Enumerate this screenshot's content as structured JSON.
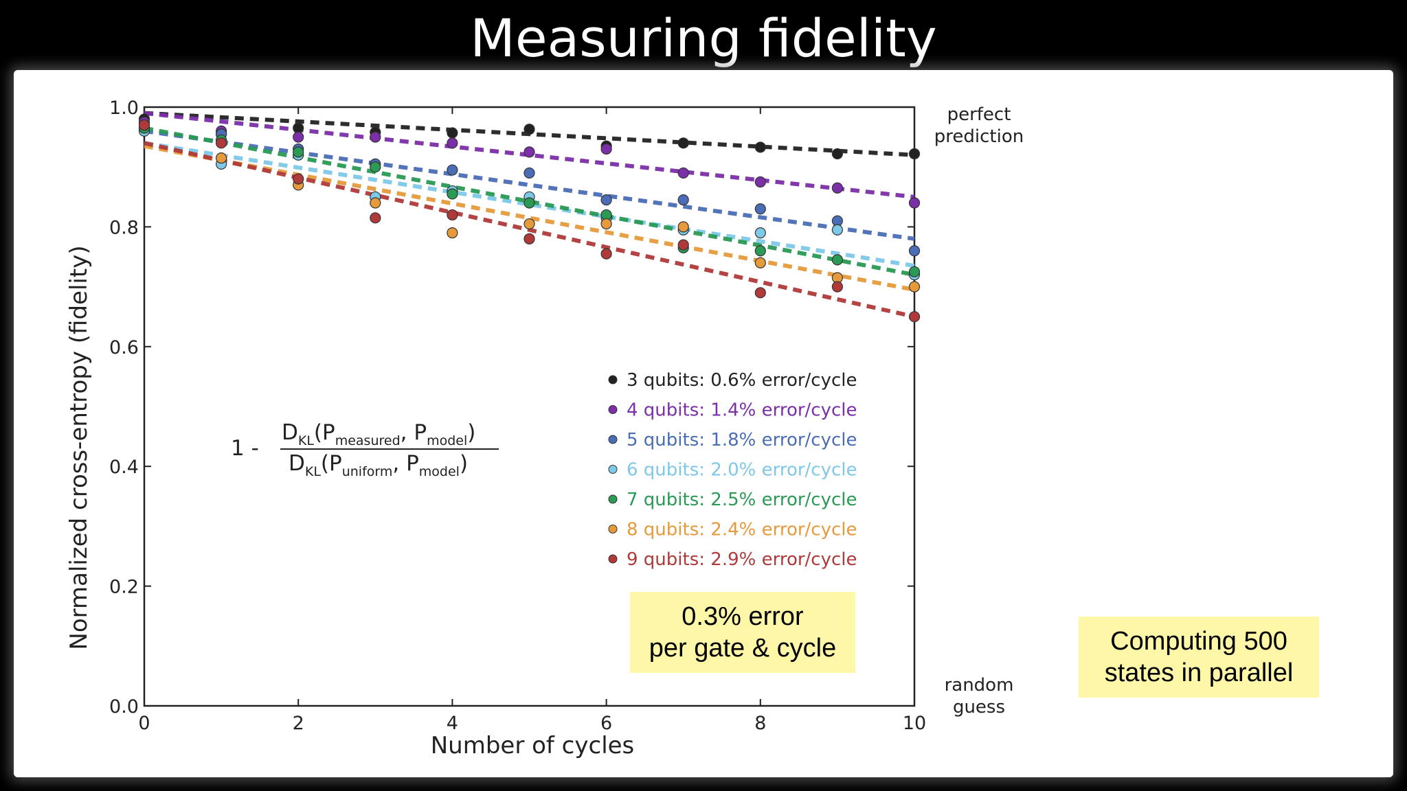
{
  "slide": {
    "title": "Measuring fidelity"
  },
  "chart_data": {
    "type": "scatter",
    "xlabel": "Number of cycles",
    "ylabel": "Normalized cross-entropy (fidelity)",
    "xlim": [
      0,
      10
    ],
    "ylim": [
      0,
      1.0
    ],
    "x_ticks": [
      "0",
      "2",
      "4",
      "6",
      "8",
      "10"
    ],
    "y_ticks": [
      "0.0",
      "0.2",
      "0.4",
      "0.6",
      "0.8",
      "1.0"
    ],
    "grid": false,
    "legend_position": "lower-right",
    "annotations": {
      "top_right": [
        "perfect",
        "prediction"
      ],
      "bottom_right": [
        "random",
        "guess"
      ]
    },
    "formula": {
      "prefix": "1  -",
      "num_d": "D",
      "num_sub": "KL",
      "num_open": "(P",
      "num_s1": "measured",
      "num_mid": ", P",
      "num_s2": "model",
      "num_close": ")",
      "den_d": "D",
      "den_sub": "KL",
      "den_open": "(P",
      "den_s1": "uniform",
      "den_mid": ", P",
      "den_s2": "model",
      "den_close": ")"
    },
    "series": [
      {
        "name": "3 qubits: 0.6% error/cycle",
        "color": "#222222",
        "fit": [
          0.99,
          0.92
        ],
        "x": [
          0,
          1,
          2,
          3,
          4,
          5,
          6,
          7,
          8,
          9,
          10
        ],
        "y": [
          0.98,
          0.955,
          0.965,
          0.958,
          0.957,
          0.963,
          0.935,
          0.94,
          0.933,
          0.922,
          0.922
        ]
      },
      {
        "name": "4 qubits: 1.4% error/cycle",
        "color": "#7b2fa8",
        "fit": [
          0.99,
          0.85
        ],
        "x": [
          0,
          1,
          2,
          3,
          4,
          5,
          6,
          7,
          8,
          9,
          10
        ],
        "y": [
          0.975,
          0.96,
          0.95,
          0.95,
          0.94,
          0.925,
          0.93,
          0.89,
          0.875,
          0.865,
          0.84
        ]
      },
      {
        "name": "5 qubits: 1.8% error/cycle",
        "color": "#4a6db5",
        "fit": [
          0.96,
          0.78
        ],
        "x": [
          0,
          1,
          2,
          3,
          4,
          5,
          6,
          7,
          8,
          9,
          10
        ],
        "y": [
          0.965,
          0.955,
          0.93,
          0.905,
          0.895,
          0.89,
          0.845,
          0.845,
          0.83,
          0.81,
          0.76
        ]
      },
      {
        "name": "6 qubits: 2.0% error/cycle",
        "color": "#7ec8e8",
        "fit": [
          0.94,
          0.735
        ],
        "x": [
          0,
          1,
          2,
          3,
          4,
          5,
          6,
          7,
          8,
          9,
          10
        ],
        "y": [
          0.96,
          0.905,
          0.92,
          0.85,
          0.86,
          0.85,
          0.815,
          0.795,
          0.79,
          0.795,
          0.72
        ]
      },
      {
        "name": "7 qubits: 2.5% error/cycle",
        "color": "#2a9a55",
        "fit": [
          0.965,
          0.72
        ],
        "x": [
          0,
          1,
          2,
          3,
          4,
          5,
          6,
          7,
          8,
          9,
          10
        ],
        "y": [
          0.965,
          0.945,
          0.925,
          0.9,
          0.855,
          0.84,
          0.82,
          0.765,
          0.76,
          0.745,
          0.725
        ]
      },
      {
        "name": "8 qubits: 2.4% error/cycle",
        "color": "#e69a3c",
        "fit": [
          0.935,
          0.695
        ],
        "x": [
          0,
          1,
          2,
          3,
          4,
          5,
          6,
          7,
          8,
          9,
          10
        ],
        "y": [
          0.97,
          0.915,
          0.87,
          0.84,
          0.79,
          0.805,
          0.805,
          0.8,
          0.74,
          0.715,
          0.7
        ]
      },
      {
        "name": "9 qubits: 2.9% error/cycle",
        "color": "#b03a3a",
        "fit": [
          0.94,
          0.65
        ],
        "x": [
          0,
          1,
          2,
          3,
          4,
          5,
          6,
          7,
          8,
          9,
          10
        ],
        "y": [
          0.97,
          0.94,
          0.88,
          0.815,
          0.82,
          0.78,
          0.755,
          0.77,
          0.69,
          0.7,
          0.65
        ]
      }
    ]
  },
  "callouts": {
    "error_box": [
      "0.3% error",
      "per gate & cycle"
    ],
    "parallel_box": [
      "Computing 500",
      "states in parallel"
    ]
  }
}
